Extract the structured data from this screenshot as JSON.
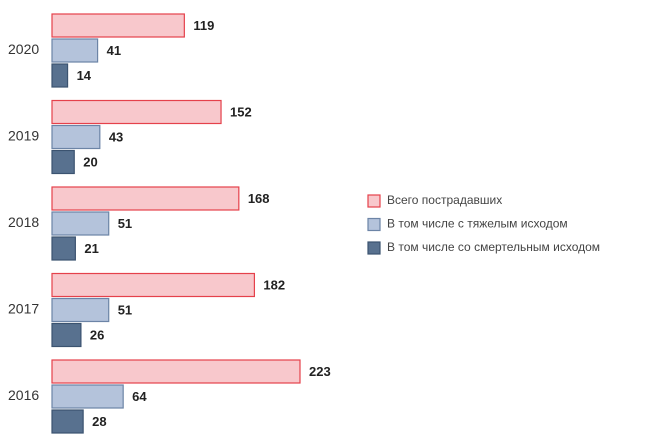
{
  "chart_data": {
    "type": "hbar",
    "categories": [
      "2020",
      "2019",
      "2018",
      "2017",
      "2016"
    ],
    "series": [
      {
        "name": "Всего пострадавших",
        "color": "#f8c8cc",
        "values": [
          119,
          152,
          168,
          182,
          223
        ]
      },
      {
        "name": "В том числе с тяжелым исходом",
        "color": "#b4c3db",
        "values": [
          41,
          43,
          51,
          51,
          64
        ]
      },
      {
        "name": "В том числе со смертельным исходом",
        "color": "#58718f",
        "values": [
          14,
          20,
          21,
          26,
          28
        ]
      }
    ],
    "legend": "right"
  }
}
